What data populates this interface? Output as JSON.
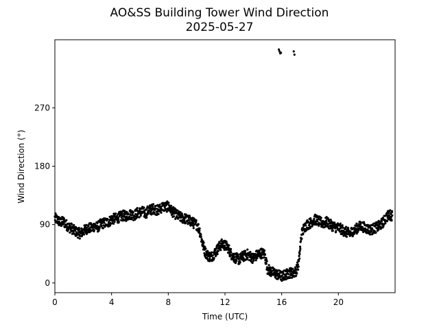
{
  "chart_data": {
    "type": "scatter",
    "title": "AO&SS Building Tower Wind Direction",
    "subtitle": "2025-05-27",
    "xlabel": "Time (UTC)",
    "ylabel": "Wind Direction (°)",
    "xlim": [
      0,
      24
    ],
    "ylim": [
      -15,
      375
    ],
    "xticks": [
      0,
      4,
      8,
      12,
      16,
      20
    ],
    "yticks": [
      0,
      90,
      180,
      270
    ],
    "grid": false,
    "legend": "none",
    "marker_color": "#000000",
    "series": [
      {
        "x": [
          0.0,
          0.2,
          0.4,
          0.6,
          0.8,
          1.0,
          1.2,
          1.4,
          1.6,
          1.8,
          2.0,
          2.2,
          2.4,
          2.6,
          2.8,
          3.0,
          3.2,
          3.4,
          3.6,
          3.8,
          4.0,
          4.2,
          4.4,
          4.6,
          4.8,
          5.0,
          5.2,
          5.4,
          5.6,
          5.8,
          6.0,
          6.2,
          6.4,
          6.6,
          6.8,
          7.0,
          7.2,
          7.4,
          7.6,
          7.8,
          8.0,
          8.2,
          8.4,
          8.6,
          8.8,
          9.0,
          9.2,
          9.4,
          9.6,
          9.8,
          10.0,
          10.2,
          10.4,
          10.6,
          10.8,
          11.0,
          11.2,
          11.4,
          11.6,
          11.8,
          12.0,
          12.2,
          12.4,
          12.6,
          12.8,
          13.0,
          13.2,
          13.4,
          13.6,
          13.8,
          14.0,
          14.2,
          14.4,
          14.6,
          14.8,
          15.0,
          15.2,
          15.4,
          15.6,
          15.8,
          16.0,
          16.2,
          16.4,
          16.6,
          16.8,
          17.0,
          17.2,
          17.4,
          17.6,
          17.8,
          18.0,
          18.2,
          18.4,
          18.6,
          18.8,
          19.0,
          19.2,
          19.4,
          19.6,
          19.8,
          20.0,
          20.2,
          20.4,
          20.6,
          20.8,
          21.0,
          21.2,
          21.4,
          21.6,
          21.8,
          22.0,
          22.2,
          22.4,
          22.6,
          22.8,
          23.0,
          23.2,
          23.4,
          23.6,
          23.8
        ],
        "y": [
          100,
          97,
          93,
          95,
          90,
          86,
          84,
          80,
          78,
          76,
          80,
          83,
          85,
          84,
          88,
          86,
          90,
          92,
          93,
          94,
          98,
          99,
          100,
          102,
          104,
          103,
          105,
          106,
          104,
          108,
          109,
          110,
          107,
          112,
          113,
          115,
          112,
          114,
          118,
          117,
          118,
          112,
          108,
          105,
          102,
          100,
          99,
          97,
          95,
          92,
          90,
          82,
          62,
          48,
          42,
          40,
          44,
          50,
          56,
          60,
          58,
          55,
          46,
          40,
          38,
          36,
          40,
          42,
          44,
          41,
          38,
          42,
          45,
          46,
          44,
          22,
          18,
          16,
          14,
          12,
          10,
          12,
          14,
          16,
          15,
          18,
          30,
          75,
          86,
          90,
          92,
          96,
          98,
          95,
          93,
          92,
          94,
          90,
          88,
          86,
          85,
          83,
          80,
          78,
          76,
          80,
          82,
          86,
          88,
          86,
          84,
          82,
          83,
          85,
          87,
          90,
          95,
          102,
          105,
          104
        ],
        "scatter_noise": 5
      },
      {
        "x": [
          15.8,
          15.85,
          15.9,
          15.95,
          16.85,
          16.9
        ],
        "y": [
          360,
          357,
          354,
          355,
          357,
          352
        ]
      }
    ]
  }
}
